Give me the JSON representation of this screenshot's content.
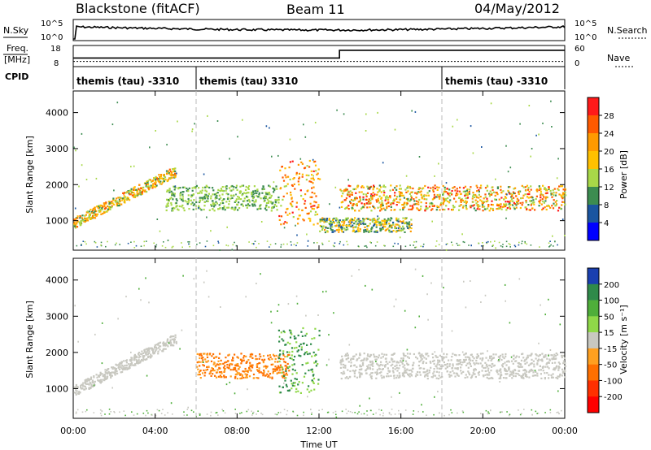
{
  "header": {
    "station": "Blackstone (fitACF)",
    "beam": "Beam 11",
    "date": "04/May/2012"
  },
  "nsky_panel": {
    "left_label": "N.Sky",
    "right_label": "N.Search",
    "left_ticks": [
      "10^5",
      "10^0"
    ],
    "right_ticks": [
      "10^5",
      "10^0"
    ]
  },
  "freq_panel": {
    "left_label_1": "Freq.",
    "left_label_2": "[MHz]",
    "right_label": "Nave",
    "left_ticks": [
      "18",
      "8"
    ],
    "right_ticks": [
      "60",
      "0"
    ],
    "freq_step": {
      "hours": [
        0,
        13,
        13,
        24
      ],
      "nave": [
        26,
        26,
        52,
        52
      ]
    },
    "freq_dotted_level": 11
  },
  "cpid": {
    "label": "CPID",
    "segments": [
      {
        "start_hour": 0,
        "text": "themis (tau) -3310"
      },
      {
        "start_hour": 6,
        "text": "themis (tau) 3310"
      },
      {
        "start_hour": 18,
        "text": "themis (tau) -3310"
      }
    ]
  },
  "power_panel": {
    "ylabel": "Slant Range [km]",
    "cbar_label": "Power [dB]",
    "cbar_ticks": [
      "28",
      "24",
      "20",
      "16",
      "12",
      "8",
      "4"
    ],
    "cbar_colors": [
      "#ff1a1a",
      "#ff5a00",
      "#ff9a00",
      "#ffc000",
      "#a8d848",
      "#3c8c50",
      "#1a55a0",
      "#0000ff"
    ]
  },
  "velocity_panel": {
    "ylabel": "Slant Range [km]",
    "cbar_label": "Velocity [m s⁻¹]",
    "cbar_ticks": [
      "200",
      "100",
      "50",
      "15",
      "-15",
      "-50",
      "-100",
      "-200"
    ],
    "cbar_colors": [
      "#1a3fb0",
      "#2f8a4a",
      "#4fae3a",
      "#8fd848",
      "#c8c8c0",
      "#ffa020",
      "#ff7000",
      "#ff3000",
      "#ff0000"
    ]
  },
  "time_axis": {
    "label": "Time UT",
    "ticks": [
      "00:00",
      "04:00",
      "08:00",
      "12:00",
      "16:00",
      "20:00",
      "00:00"
    ]
  },
  "range_ticks": [
    "4000",
    "3000",
    "2000",
    "1000"
  ],
  "chart_data": {
    "type": "heatmap",
    "title": "Blackstone (fitACF)",
    "xlabel": "Time UT",
    "ylabel": "Slant Range [km]",
    "xlim_hours": [
      0,
      24
    ],
    "ylim_km": [
      180,
      4600
    ],
    "power_echo_bands": [
      {
        "hours": [
          0,
          5.0
        ],
        "range_km": [
          950,
          2400
        ],
        "power_db": [
          8,
          24
        ],
        "note": "rising arc"
      },
      {
        "hours": [
          4.5,
          10
        ],
        "range_km": [
          1300,
          2000
        ],
        "power_db": [
          8,
          14
        ]
      },
      {
        "hours": [
          10,
          12
        ],
        "range_km": [
          900,
          2700
        ],
        "power_db": [
          12,
          28
        ]
      },
      {
        "hours": [
          12,
          16.5
        ],
        "range_km": [
          700,
          1100
        ],
        "power_db": [
          4,
          20
        ]
      },
      {
        "hours": [
          13,
          24
        ],
        "range_km": [
          1300,
          2000
        ],
        "power_db": [
          8,
          28
        ]
      }
    ],
    "velocity_echo_bands": [
      {
        "hours": [
          0,
          5.0
        ],
        "range_km": [
          950,
          2400
        ],
        "velocity_ms": [
          -15,
          15
        ]
      },
      {
        "hours": [
          6,
          10.5
        ],
        "range_km": [
          1300,
          2000
        ],
        "velocity_ms": [
          -100,
          -15
        ]
      },
      {
        "hours": [
          10,
          12
        ],
        "range_km": [
          900,
          2700
        ],
        "velocity_ms": [
          15,
          100
        ]
      },
      {
        "hours": [
          13,
          24
        ],
        "range_km": [
          1300,
          2000
        ],
        "velocity_ms": [
          -15,
          15
        ]
      }
    ]
  }
}
